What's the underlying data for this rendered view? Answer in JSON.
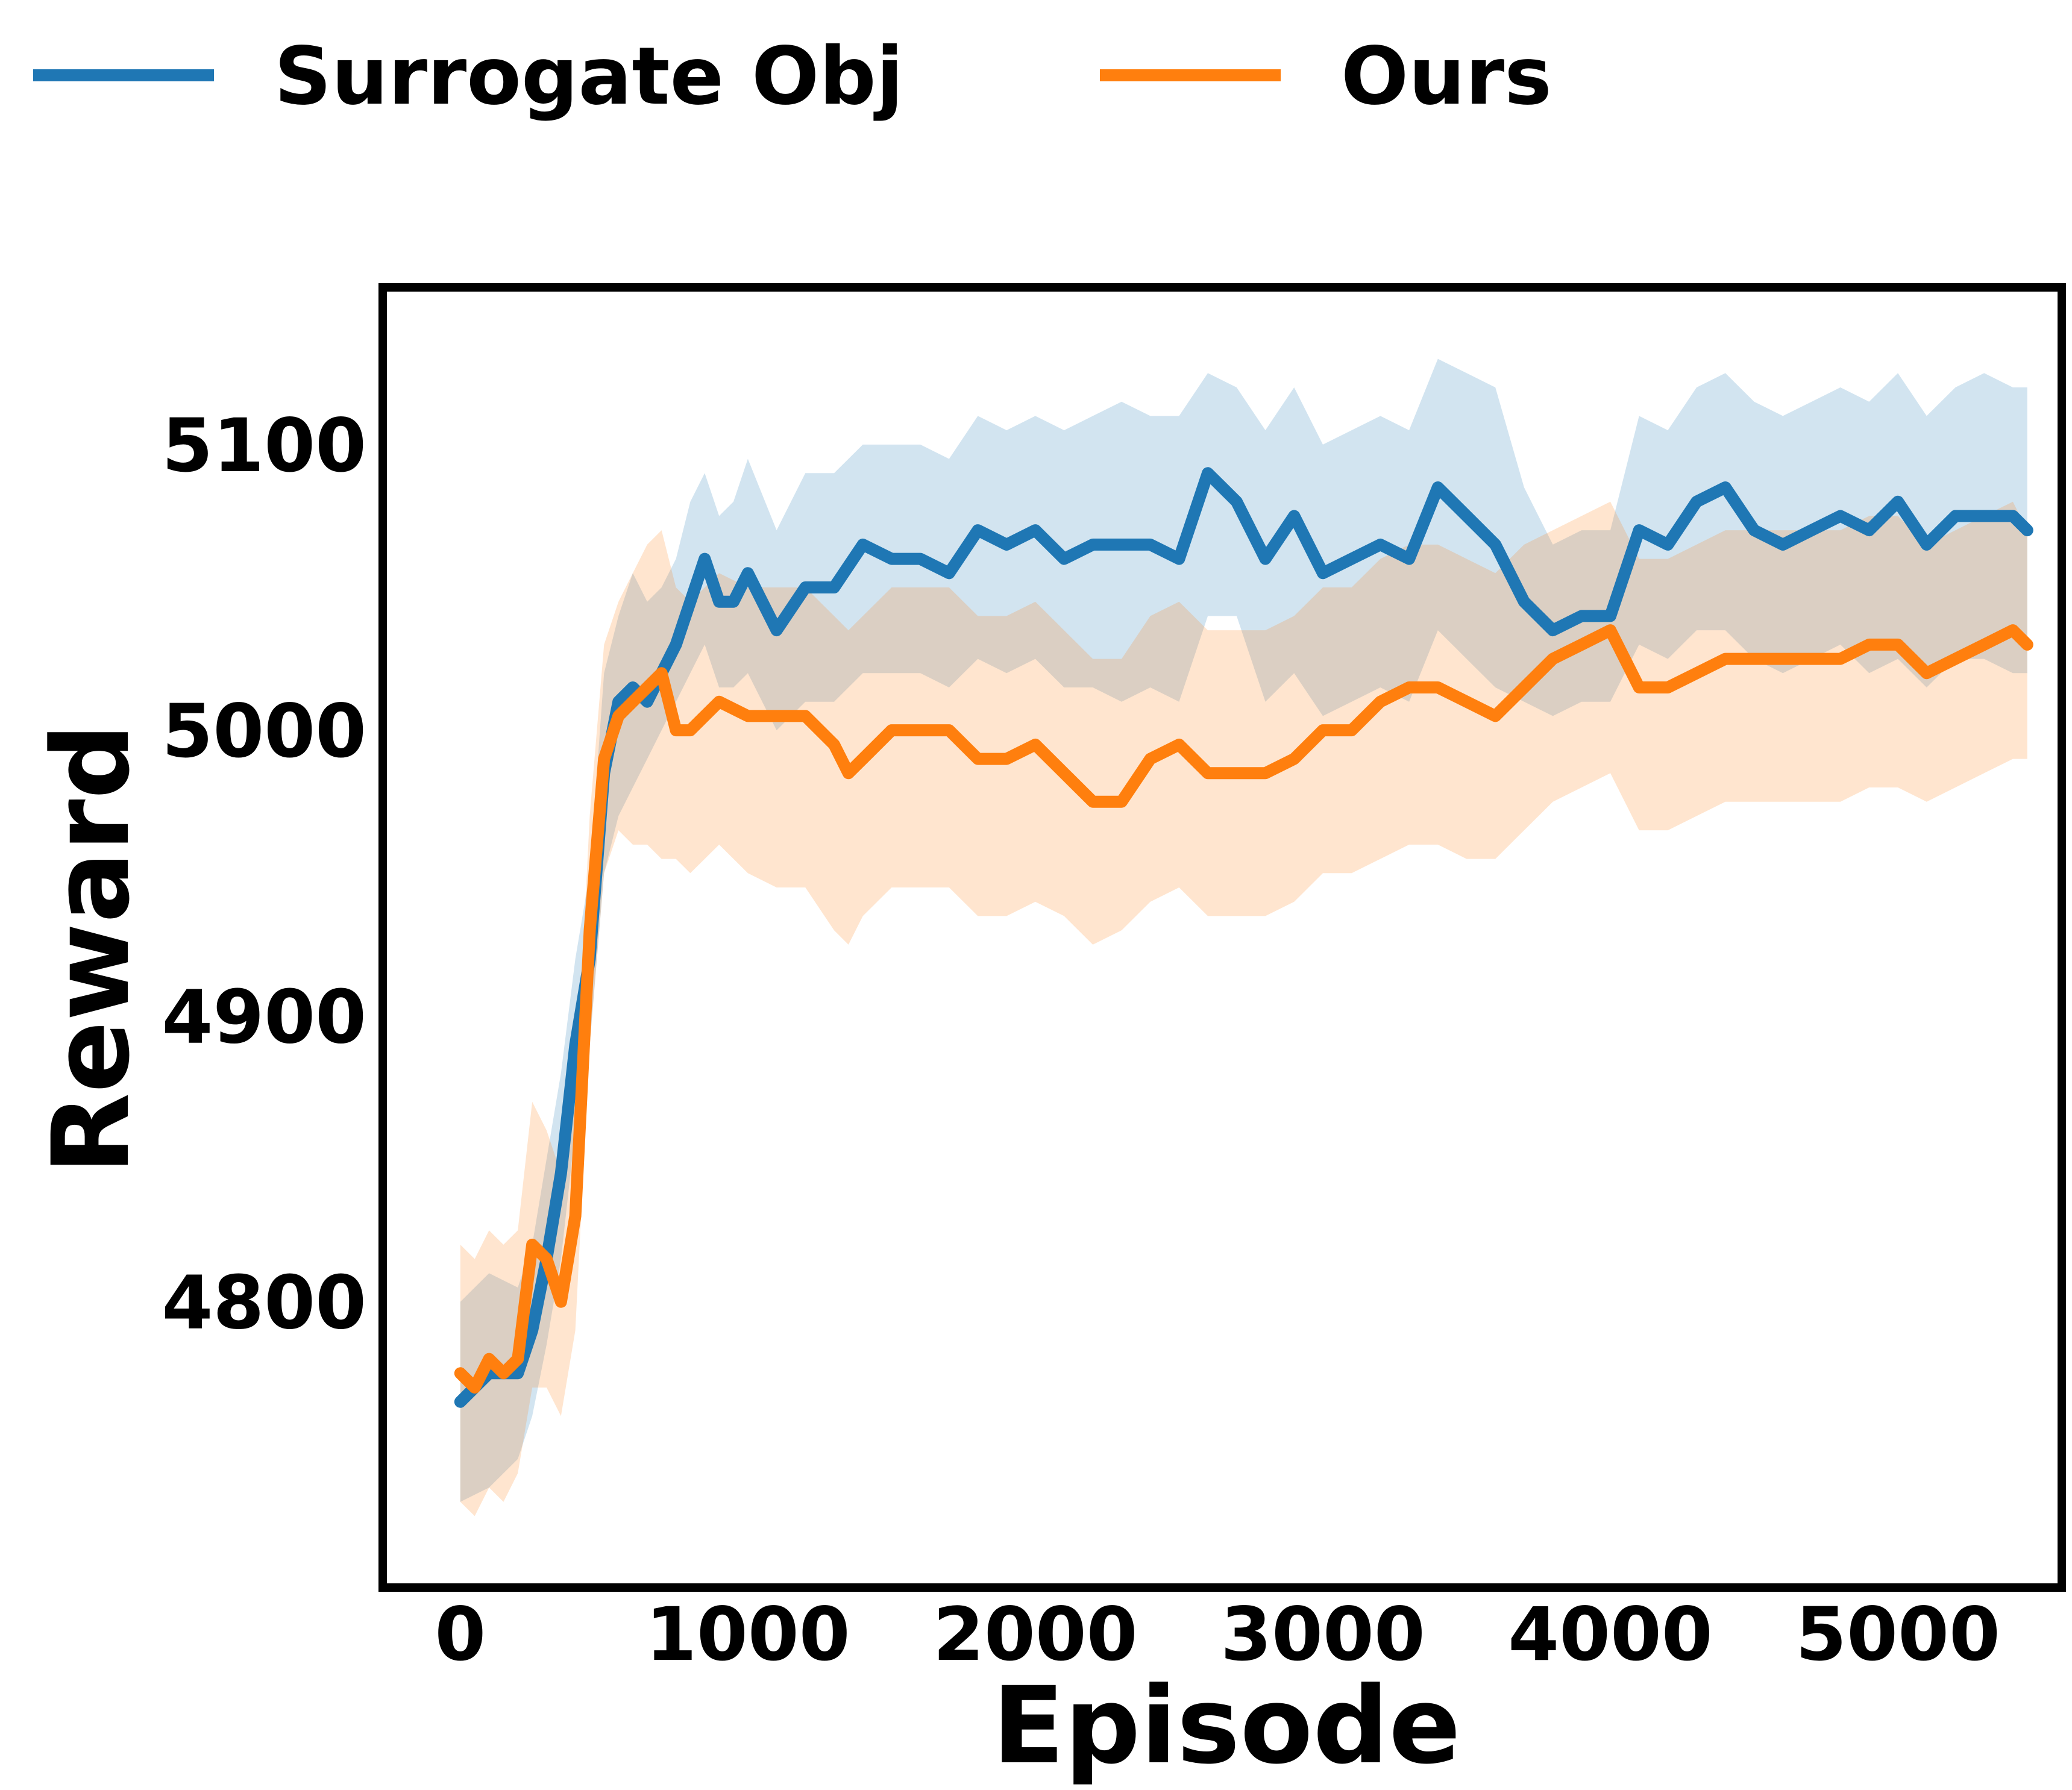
{
  "chart_data": {
    "type": "line",
    "xlabel": "Episode",
    "ylabel": "Reward",
    "xlim": [
      -270,
      5570
    ],
    "ylim": [
      4700,
      5155
    ],
    "xticks": [
      0,
      1000,
      2000,
      3000,
      4000,
      5000
    ],
    "yticks": [
      4800,
      4900,
      5000,
      5100
    ],
    "xtick_labels": [
      "0",
      "1000",
      "2000",
      "3000",
      "4000",
      "5000"
    ],
    "ytick_labels": [
      "4800",
      "4900",
      "5000",
      "5100"
    ],
    "grid": false,
    "legend_position": "top, above plot",
    "series": [
      {
        "name": "Surrogate Obj",
        "color": "#1f77b4",
        "x": [
          0,
          100,
          200,
          250,
          300,
          350,
          400,
          450,
          500,
          550,
          600,
          650,
          700,
          750,
          800,
          850,
          900,
          950,
          1000,
          1100,
          1200,
          1300,
          1400,
          1500,
          1600,
          1700,
          1800,
          1900,
          2000,
          2100,
          2200,
          2300,
          2400,
          2500,
          2600,
          2700,
          2800,
          2900,
          3000,
          3100,
          3200,
          3300,
          3400,
          3500,
          3600,
          3700,
          3800,
          3900,
          4000,
          4100,
          4200,
          4300,
          4400,
          4500,
          4600,
          4700,
          4800,
          4900,
          5000,
          5100,
          5200,
          5300,
          5400,
          5450
        ],
        "values": [
          4765,
          4775,
          4775,
          4790,
          4815,
          4845,
          4890,
          4920,
          4985,
          5010,
          5015,
          5010,
          5020,
          5030,
          5045,
          5060,
          5045,
          5045,
          5055,
          5035,
          5050,
          5050,
          5065,
          5060,
          5060,
          5055,
          5070,
          5065,
          5070,
          5060,
          5065,
          5065,
          5065,
          5060,
          5090,
          5080,
          5060,
          5075,
          5055,
          5060,
          5065,
          5060,
          5085,
          5075,
          5065,
          5045,
          5035,
          5040,
          5040,
          5070,
          5065,
          5080,
          5085,
          5070,
          5065,
          5070,
          5075,
          5070,
          5080,
          5065,
          5075,
          5075,
          5075,
          5070
        ],
        "lower": [
          4730,
          4735,
          4745,
          4760,
          4785,
          4815,
          4860,
          4890,
          4950,
          4970,
          4980,
          4990,
          5000,
          5010,
          5020,
          5030,
          5015,
          5015,
          5020,
          5000,
          5010,
          5010,
          5020,
          5020,
          5020,
          5015,
          5025,
          5020,
          5025,
          5015,
          5015,
          5010,
          5015,
          5010,
          5040,
          5040,
          5010,
          5020,
          5005,
          5010,
          5015,
          5010,
          5035,
          5025,
          5015,
          5010,
          5005,
          5010,
          5010,
          5030,
          5025,
          5035,
          5035,
          5025,
          5020,
          5025,
          5030,
          5020,
          5025,
          5015,
          5025,
          5025,
          5020,
          5020
        ],
        "upper": [
          4800,
          4810,
          4805,
          4820,
          4850,
          4880,
          4920,
          4950,
          5020,
          5040,
          5055,
          5045,
          5050,
          5060,
          5080,
          5090,
          5075,
          5080,
          5095,
          5070,
          5090,
          5090,
          5100,
          5100,
          5100,
          5095,
          5110,
          5105,
          5110,
          5105,
          5110,
          5115,
          5110,
          5110,
          5125,
          5120,
          5105,
          5120,
          5100,
          5105,
          5110,
          5105,
          5130,
          5125,
          5120,
          5085,
          5065,
          5070,
          5070,
          5110,
          5105,
          5120,
          5125,
          5115,
          5110,
          5115,
          5120,
          5115,
          5125,
          5110,
          5120,
          5125,
          5120,
          5120
        ]
      },
      {
        "name": "Ours",
        "color": "#ff7f0e",
        "x": [
          0,
          50,
          100,
          150,
          200,
          250,
          300,
          350,
          400,
          450,
          500,
          550,
          600,
          650,
          700,
          750,
          800,
          850,
          900,
          1000,
          1100,
          1200,
          1300,
          1350,
          1400,
          1500,
          1600,
          1700,
          1800,
          1900,
          2000,
          2100,
          2200,
          2300,
          2400,
          2500,
          2600,
          2700,
          2800,
          2900,
          3000,
          3100,
          3200,
          3300,
          3400,
          3500,
          3600,
          3700,
          3800,
          3900,
          4000,
          4050,
          4100,
          4200,
          4300,
          4400,
          4500,
          4600,
          4700,
          4800,
          4900,
          5000,
          5100,
          5200,
          5300,
          5400,
          5450
        ],
        "values": [
          4775,
          4770,
          4780,
          4775,
          4780,
          4820,
          4815,
          4800,
          4830,
          4930,
          4990,
          5005,
          5010,
          5015,
          5020,
          5000,
          5000,
          5005,
          5010,
          5005,
          5005,
          5005,
          4995,
          4985,
          4990,
          5000,
          5000,
          5000,
          4990,
          4990,
          4995,
          4985,
          4975,
          4975,
          4990,
          4995,
          4985,
          4985,
          4985,
          4990,
          5000,
          5000,
          5010,
          5015,
          5015,
          5010,
          5005,
          5015,
          5025,
          5030,
          5035,
          5025,
          5015,
          5015,
          5020,
          5025,
          5025,
          5025,
          5025,
          5025,
          5030,
          5030,
          5020,
          5025,
          5030,
          5035,
          5030
        ],
        "lower": [
          4730,
          4725,
          4735,
          4730,
          4740,
          4770,
          4770,
          4760,
          4790,
          4890,
          4950,
          4965,
          4960,
          4960,
          4955,
          4955,
          4950,
          4955,
          4960,
          4950,
          4945,
          4945,
          4930,
          4925,
          4935,
          4945,
          4945,
          4945,
          4935,
          4935,
          4940,
          4935,
          4925,
          4930,
          4940,
          4945,
          4935,
          4935,
          4935,
          4940,
          4950,
          4950,
          4955,
          4960,
          4960,
          4955,
          4955,
          4965,
          4975,
          4980,
          4985,
          4975,
          4965,
          4965,
          4970,
          4975,
          4975,
          4975,
          4975,
          4975,
          4980,
          4980,
          4975,
          4980,
          4985,
          4990,
          4990
        ],
        "upper": [
          4820,
          4815,
          4825,
          4820,
          4825,
          4870,
          4860,
          4845,
          4870,
          4970,
          5030,
          5045,
          5055,
          5065,
          5070,
          5050,
          5045,
          5050,
          5055,
          5050,
          5050,
          5050,
          5040,
          5035,
          5040,
          5050,
          5050,
          5050,
          5040,
          5040,
          5045,
          5035,
          5025,
          5025,
          5040,
          5045,
          5035,
          5035,
          5035,
          5040,
          5050,
          5050,
          5060,
          5065,
          5065,
          5060,
          5055,
          5065,
          5070,
          5075,
          5080,
          5070,
          5060,
          5060,
          5065,
          5070,
          5070,
          5070,
          5070,
          5070,
          5075,
          5075,
          5065,
          5070,
          5075,
          5080,
          5070
        ]
      }
    ]
  }
}
